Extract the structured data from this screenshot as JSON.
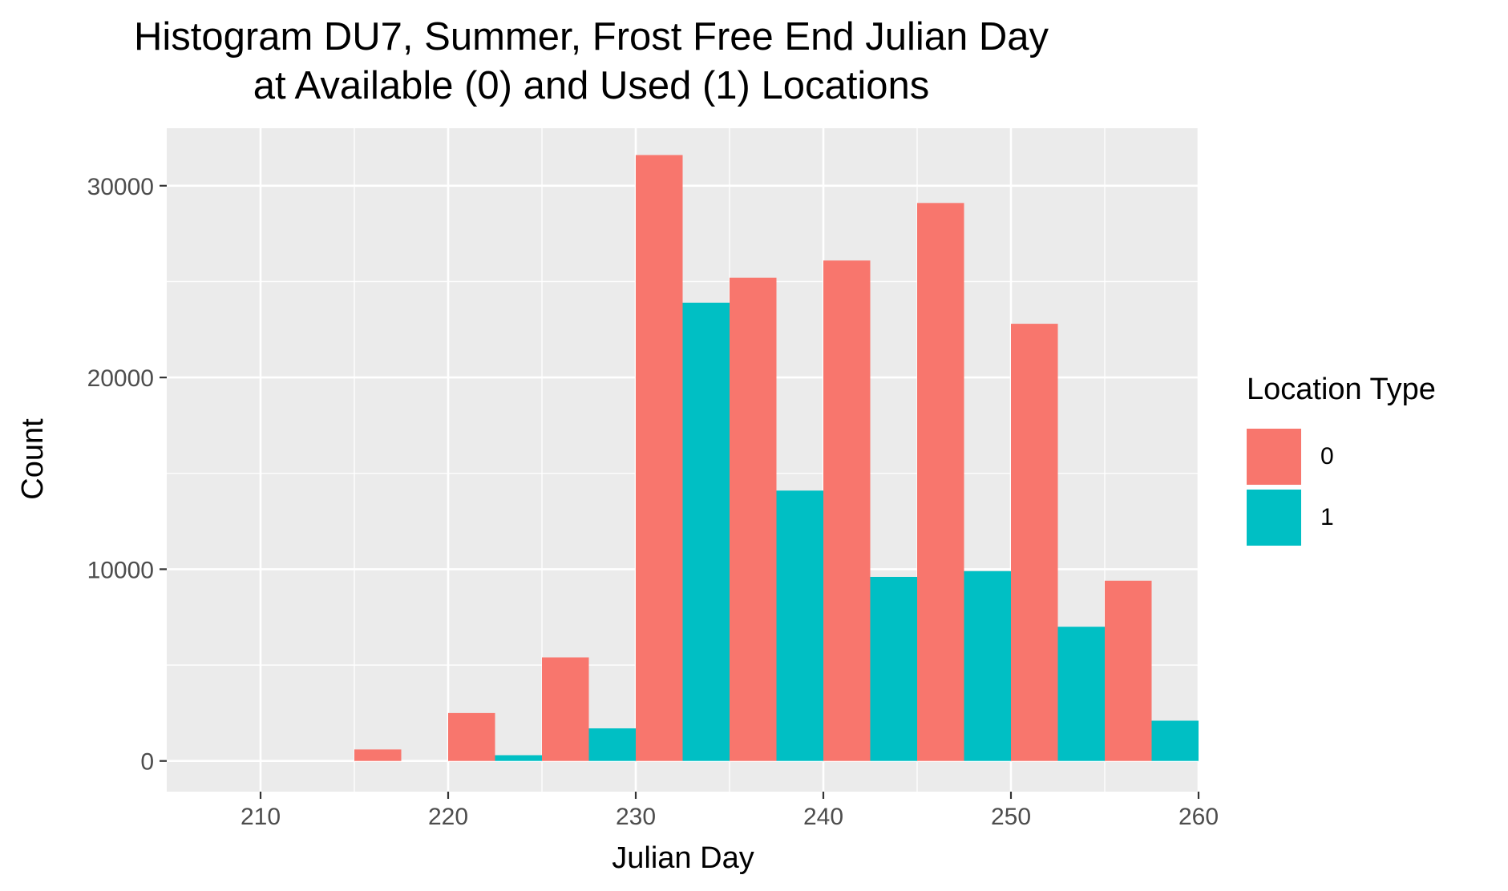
{
  "chart_data": {
    "type": "bar",
    "title": "Histogram DU7, Summer, Frost Free End Julian Day",
    "subtitle": "at Available (0) and Used (1) Locations",
    "xlabel": "Julian Day",
    "ylabel": "Count",
    "xlim": [
      205,
      260
    ],
    "ylim": [
      -1600,
      33000
    ],
    "x_ticks": [
      "210",
      "220",
      "230",
      "240",
      "250",
      "260"
    ],
    "y_ticks": [
      "0",
      "10000",
      "20000",
      "30000"
    ],
    "x_tick_values": [
      210,
      220,
      230,
      240,
      250,
      260
    ],
    "y_tick_values": [
      0,
      10000,
      20000,
      30000
    ],
    "x_minor_values": [
      215,
      225,
      235,
      245,
      255
    ],
    "y_minor_values": [
      5000,
      15000,
      25000
    ],
    "grid": true,
    "legend_position": "right",
    "legend_title": "Location Type",
    "bin_width": 5,
    "bin_starts": [
      210,
      215,
      220,
      225,
      230,
      235,
      240,
      245,
      250,
      255
    ],
    "series": [
      {
        "name": "0",
        "color": "#F8766D",
        "values": [
          0,
          600,
          2500,
          5400,
          31600,
          25200,
          26100,
          29100,
          22800,
          9400
        ]
      },
      {
        "name": "1",
        "color": "#00BFC4",
        "values": [
          0,
          0,
          300,
          1700,
          23900,
          14100,
          9600,
          9900,
          7000,
          2100
        ]
      }
    ]
  }
}
